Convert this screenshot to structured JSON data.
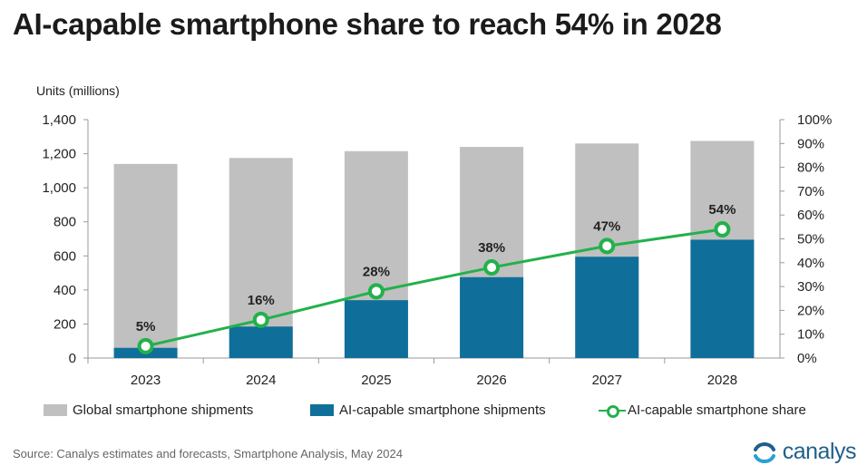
{
  "title": "AI-capable smartphone share to reach 54% in 2028",
  "y_unit": "Units (millions)",
  "source": "Source:  Canalys estimates and forecasts, Smartphone  Analysis, May 2024",
  "brand": "canalys",
  "colors": {
    "global": "#c0c0c0",
    "ai": "#0f6f9a",
    "share": "#22b14c",
    "brand": "#1f5f8b"
  },
  "legend": {
    "global": "Global smartphone shipments",
    "ai": "AI-capable smartphone shipments",
    "share": "AI-capable smartphone share"
  },
  "chart_data": {
    "type": "bar",
    "categories": [
      "2023",
      "2024",
      "2025",
      "2026",
      "2027",
      "2028"
    ],
    "series": [
      {
        "name": "Global smartphone shipments",
        "kind": "bar",
        "axis": "left",
        "values": [
          1140,
          1175,
          1215,
          1240,
          1260,
          1275
        ]
      },
      {
        "name": "AI-capable smartphone shipments",
        "kind": "bar",
        "axis": "left",
        "values": [
          60,
          185,
          340,
          475,
          595,
          695
        ]
      },
      {
        "name": "AI-capable smartphone share",
        "kind": "line",
        "axis": "right",
        "values": [
          5,
          16,
          28,
          38,
          47,
          54
        ],
        "labels": [
          "5%",
          "16%",
          "28%",
          "38%",
          "47%",
          "54%"
        ]
      }
    ],
    "left_axis": {
      "range": [
        0,
        1400
      ],
      "ticks": [
        "0",
        "200",
        "400",
        "600",
        "800",
        "1,000",
        "1,200",
        "1,400"
      ]
    },
    "right_axis": {
      "range": [
        0,
        100
      ],
      "ticks": [
        "0%",
        "10%",
        "20%",
        "30%",
        "40%",
        "50%",
        "60%",
        "70%",
        "80%",
        "90%",
        "100%"
      ]
    },
    "grid": false,
    "legend_position": "bottom"
  }
}
